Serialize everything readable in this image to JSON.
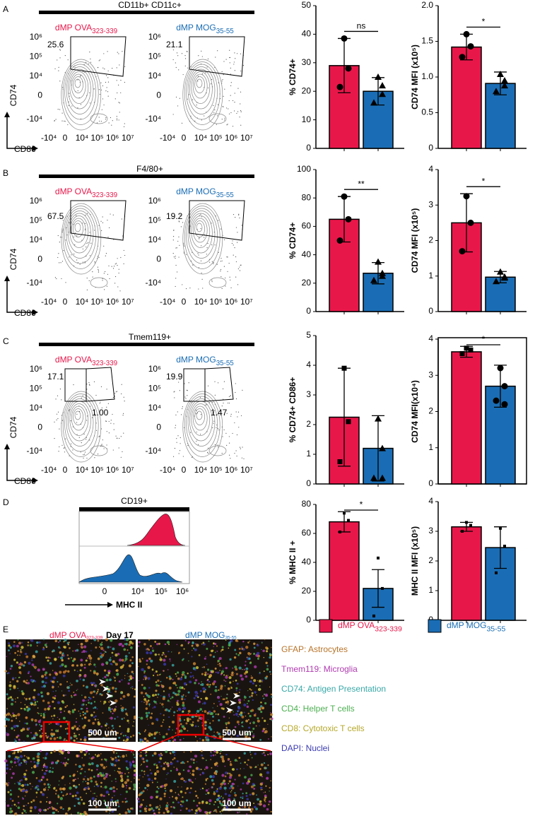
{
  "groups": [
    {
      "name": "dMP OVA",
      "sub": "323-339",
      "color": "#e8174a"
    },
    {
      "name": "dMP MOG",
      "sub": "35-55",
      "color": "#1a6db4"
    }
  ],
  "flow_axes": {
    "y_label": "CD74",
    "x_label": "CD86",
    "y_ticks": [
      "10⁶",
      "10⁵",
      "10⁴",
      "0",
      "-10⁴"
    ],
    "x_ticks": [
      "-10⁴",
      "0",
      "10⁴",
      "10⁵",
      "10⁶",
      "10⁷"
    ]
  },
  "flow": [
    {
      "letter": "A",
      "title": "CD11b+ CD11c+",
      "samples": [
        {
          "gates": [
            "25.6"
          ]
        },
        {
          "gates": [
            "21.1"
          ]
        }
      ]
    },
    {
      "letter": "B",
      "title": "F4/80+",
      "samples": [
        {
          "gates": [
            "67.5"
          ]
        },
        {
          "gates": [
            "19.2"
          ]
        }
      ]
    },
    {
      "letter": "C",
      "title": "Tmem119+",
      "samples": [
        {
          "gates": [
            "17.1",
            "1.00"
          ]
        },
        {
          "gates": [
            "19.9",
            "1.47"
          ]
        }
      ]
    }
  ],
  "histogram": {
    "letter": "D",
    "title": "CD19+",
    "x_label": "MHC II",
    "x_ticks": [
      "0",
      "10⁴",
      "10⁵",
      "10⁶"
    ]
  },
  "microscopy": {
    "letter": "E",
    "day": "Day 17",
    "scale_bars": [
      "500 um",
      "100 um"
    ],
    "stains": [
      {
        "label": "GFAP: Astrocytes",
        "color": "#b8742a"
      },
      {
        "label": "Tmem119: Microglia",
        "color": "#b03cb0"
      },
      {
        "label": "CD74: Antigen Presentation",
        "color": "#3aa8a8"
      },
      {
        "label": "CD4: Helper T cells",
        "color": "#4caf50"
      },
      {
        "label": "CD8: Cytotoxic T cells",
        "color": "#b5a82a"
      },
      {
        "label": "DAPI: Nuclei",
        "color": "#3a3ab0"
      }
    ]
  },
  "chart_data": [
    {
      "type": "bar",
      "ylabel": "% CD74+",
      "ylim": [
        0,
        50
      ],
      "yticks": [
        0,
        10,
        20,
        30,
        40,
        50
      ],
      "annotation": "ns",
      "series": [
        {
          "color": "#e8174a",
          "marker": "circle",
          "values": [
            29
          ],
          "errors": [
            9.5
          ],
          "points": [
            38.5,
            28,
            21.5
          ]
        },
        {
          "color": "#1a6db4",
          "marker": "triangle",
          "values": [
            20
          ],
          "errors": [
            4.8
          ],
          "points": [
            25,
            22,
            16,
            19
          ]
        }
      ]
    },
    {
      "type": "bar",
      "ylabel": "CD74 MFI (x10⁵)",
      "ylim": [
        0,
        2
      ],
      "yticks": [
        0,
        0.5,
        {
          "value": 1,
          "label": "1.0"
        },
        1.5,
        {
          "value": 2,
          "label": "2.0"
        }
      ],
      "annotation": "*",
      "series": [
        {
          "color": "#e8174a",
          "marker": "circle",
          "values": [
            1.42
          ],
          "errors": [
            0.18
          ],
          "points": [
            1.6,
            1.43,
            1.28
          ]
        },
        {
          "color": "#1a6db4",
          "marker": "triangle",
          "values": [
            0.91
          ],
          "errors": [
            0.16
          ],
          "points": [
            1.04,
            0.95,
            0.8,
            0.88
          ]
        }
      ]
    },
    {
      "type": "bar",
      "ylabel": "% CD74+",
      "ylim": [
        0,
        100
      ],
      "yticks": [
        0,
        20,
        40,
        60,
        80,
        100
      ],
      "annotation": "**",
      "series": [
        {
          "color": "#e8174a",
          "marker": "circle",
          "values": [
            65
          ],
          "errors": [
            16
          ],
          "points": [
            81,
            65,
            50
          ]
        },
        {
          "color": "#1a6db4",
          "marker": "triangle",
          "values": [
            27
          ],
          "errors": [
            7.5
          ],
          "points": [
            35,
            27,
            22,
            25
          ]
        }
      ]
    },
    {
      "type": "bar",
      "ylabel": "CD74 MFI (x10⁵)",
      "ylim": [
        0,
        4
      ],
      "yticks": [
        0,
        1,
        2,
        3,
        4
      ],
      "annotation": "*",
      "series": [
        {
          "color": "#e8174a",
          "marker": "circle",
          "values": [
            2.5
          ],
          "errors": [
            0.82
          ],
          "points": [
            3.25,
            2.5,
            1.7
          ]
        },
        {
          "color": "#1a6db4",
          "marker": "triangle",
          "values": [
            0.97
          ],
          "errors": [
            0.16
          ],
          "points": [
            1.12,
            0.98,
            0.85,
            0.95
          ]
        }
      ]
    },
    {
      "type": "bar",
      "ylabel": "% CD74+ CD86+",
      "ylim": [
        0,
        5
      ],
      "yticks": [
        0,
        1,
        2,
        3,
        4,
        5
      ],
      "series": [
        {
          "color": "#e8174a",
          "marker": "square",
          "values": [
            2.25
          ],
          "errors": [
            1.65
          ],
          "points": [
            3.9,
            2.1,
            0.75
          ]
        },
        {
          "color": "#1a6db4",
          "marker": "triangle",
          "values": [
            1.2
          ],
          "errors": [
            1.1
          ],
          "points": [
            2.2,
            1.2,
            0.2,
            0.2
          ]
        }
      ]
    },
    {
      "type": "bar",
      "ylabel": "CD74 MFI(x10⁴)",
      "ylim": [
        0,
        4
      ],
      "yticks": [
        0,
        1,
        2,
        3,
        4
      ],
      "annotation": "*",
      "frame": true,
      "series": [
        {
          "color": "#e8174a",
          "marker": "square",
          "values": [
            3.65
          ],
          "errors": [
            0.15
          ],
          "points": [
            3.75,
            3.7,
            3.6
          ]
        },
        {
          "color": "#1a6db4",
          "marker": "circle",
          "values": [
            2.7
          ],
          "errors": [
            0.58
          ],
          "points": [
            3.2,
            2.7,
            2.3,
            2.2
          ]
        }
      ]
    },
    {
      "type": "bar",
      "ylabel": "% MHC II +",
      "ylim": [
        0,
        80
      ],
      "yticks": [
        0,
        20,
        40,
        60,
        80
      ],
      "annotation": "*",
      "series": [
        {
          "color": "#e8174a",
          "marker": "dot",
          "values": [
            68
          ],
          "errors": [
            7
          ],
          "points": [
            74,
            69,
            61
          ]
        },
        {
          "color": "#1a6db4",
          "marker": "dot",
          "values": [
            22
          ],
          "errors": [
            13
          ],
          "points": [
            43,
            22,
            3
          ]
        }
      ]
    },
    {
      "type": "bar",
      "ylabel": "MHC II MFI (x10⁵)",
      "ylim": [
        0,
        4
      ],
      "yticks": [
        0,
        1,
        2,
        3,
        4
      ],
      "series": [
        {
          "color": "#e8174a",
          "marker": "dot",
          "values": [
            3.15
          ],
          "errors": [
            0.15
          ],
          "points": [
            3.3,
            3.2,
            3.0
          ]
        },
        {
          "color": "#1a6db4",
          "marker": "dot",
          "values": [
            2.45
          ],
          "errors": [
            0.7
          ],
          "points": [
            3.1,
            2.5,
            1.6
          ]
        }
      ]
    }
  ]
}
